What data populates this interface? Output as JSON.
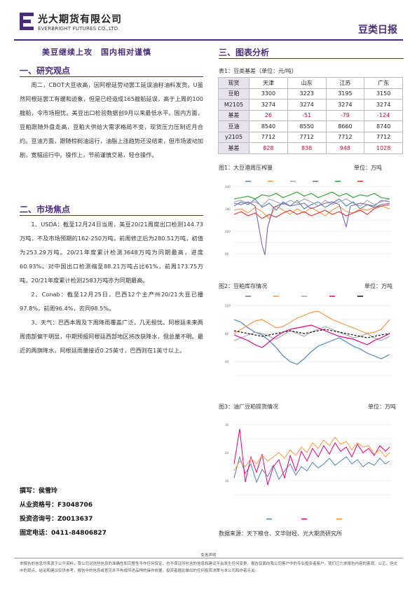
{
  "header": {
    "company_cn": "光大期货有限公司",
    "company_en": "EVERBRIGHT FUTURES CO.,LTD.",
    "report_type": "豆类日报"
  },
  "headline": "美豆继续上攻　国内相对谨慎",
  "sections": {
    "research_title": "一、研究观点",
    "research_body": "周二，CBOT大豆收高，因阿根廷劳动罢工延误油籽油料发货。U虽然阿根廷罢工有缓和迹象，但是已经造成165艘船延误，高于上周的100艘船，令市场担忧。美豆出口检验数据创9月以来最低水平。国内方面，豆粕跟随外盘走高，豆粕大供给大需求格局不变，现货压力压制近月合约。豆油方面，跟随棕榈油运行，油脂上涨趋势还没结束，但市场波动加剧，宽幅运行中。操作上，节前谨慎交易，轻仓操作。",
    "market_title": "二、市场焦点",
    "market_items": [
      "1、USDA：截至12月24日当周，美豆20/21周度出口检测144.73万吨，不及市场预期的162-250万吨，前周修正后为280.51万吨，初值为253.29万吨。20/21年度累计检测3648万吨为同期最高，进度60.93%。对中国出口检测缩至88.21万吨占比61%，前周173.75万吨，20/21年度累计检测2583万吨亦为同期最高。",
      "2、Conab：截至12月25日，巴西12个主产州20/21大豆已播97.8%，前周96.4%，去同98.5%。",
      "3、天气：巴西本周及下周降雨覆盖广泛，几无担忧。阿根廷未来两周南部偏干明显，中期预报阿根廷西部地区将改获降水，但总量不明。最近的两旗降水，阿根廷雨量接近0.25英寸，巴西则在1英寸以上。"
    ],
    "charts_title": "三、图表分析"
  },
  "table": {
    "title": "表1：豆类基差（单位：元/吨）",
    "header": [
      "现货",
      "天津",
      "山东",
      "江苏",
      "广东"
    ],
    "rows": [
      [
        "豆粕",
        "3300",
        "3223",
        "3195",
        "3150"
      ],
      [
        "M2105",
        "3274",
        "3274",
        "3274",
        "3274"
      ],
      [
        "基差",
        "26",
        "-51",
        "-79",
        "-124"
      ],
      [
        "豆油",
        "8540",
        "8550",
        "8660",
        "8740"
      ],
      [
        "y2105",
        "7712",
        "7712",
        "7712",
        "7712"
      ],
      [
        "基差",
        "828",
        "838",
        "948",
        "1028"
      ]
    ]
  },
  "figures": {
    "fig1_title": "图1：大豆港周压榨量",
    "fig1_unit": "单位：万吨",
    "fig2_title": "图2：豆粕库存情况",
    "fig2_unit": "单位：万吨",
    "fig3_title": "图3：油厂豆粕提货情况",
    "fig3_unit": "单位：万吨",
    "source": "数据来源：天下粮仓、文华财经、光大期货研究所"
  },
  "contact": {
    "author": "撰写：侯雪玲",
    "qualification": "从业资格号：F3048706",
    "consult": "投资咨询号：Z0013637",
    "phone": "固定电话：0411-84806827"
  },
  "disclaimer": {
    "title": "免责声明",
    "text": "本报告的信息均来源于公开资料，我公司对这些信息的准确性和完整性不作任何保证，也不保证所包含的信息和建议不会发生任何变更。报告仅面向我公司客户中的专业投资者客户。我们已力求报告内容的客观、公正，但文中的观点、结论和建议仅供参考，报告中的信息或意见并不构成所述品种的操作依据，投资者据此做出的任何投资决策与本公司和作者无关。"
  },
  "colors": {
    "brand": "#4a2d7a",
    "negative": "#c8102e"
  }
}
